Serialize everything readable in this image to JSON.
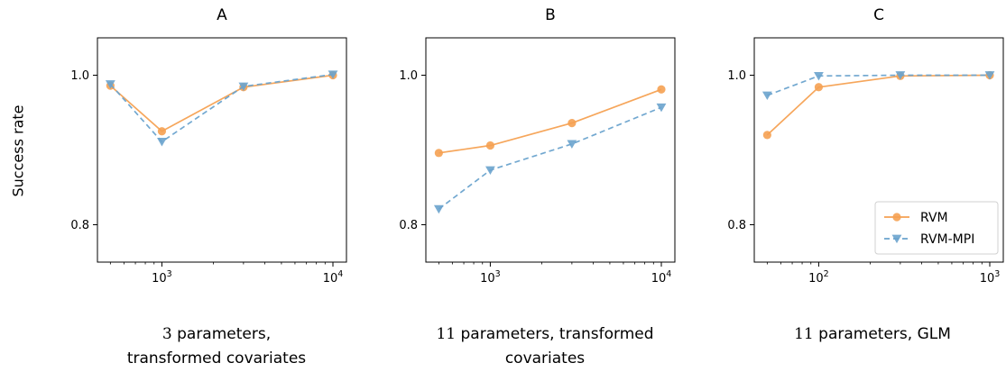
{
  "ylabel": "Success rate",
  "legend": {
    "position": "lower-right",
    "panel": 2,
    "entries": [
      "RVM",
      "RVM-MPI"
    ]
  },
  "colors": {
    "RVM": "#f5a152",
    "RVM-MPI": "#6aa3cd"
  },
  "captions": [
    {
      "num": "3",
      "line1": " parameters,",
      "line2": "transformed covariates"
    },
    {
      "num": "11",
      "line1": " parameters, transformed",
      "line2": "covariates"
    },
    {
      "num": "11",
      "line1": " parameters, GLM",
      "line2": ""
    }
  ],
  "chart_data": [
    {
      "type": "line",
      "title": "A",
      "x_scale": "log",
      "xlim": [
        420,
        12000
      ],
      "ylim": [
        0.75,
        1.05
      ],
      "xticks": [
        {
          "value": 1000,
          "label": "10^3"
        },
        {
          "value": 10000,
          "label": "10^4"
        }
      ],
      "yticks": [
        0.8,
        1.0
      ],
      "x": [
        500,
        1000,
        3000,
        10000
      ],
      "series": [
        {
          "name": "RVM",
          "marker": "circle",
          "linestyle": "solid",
          "values": [
            0.986,
            0.925,
            0.984,
            1.0
          ]
        },
        {
          "name": "RVM-MPI",
          "marker": "triangle-down",
          "linestyle": "dashed",
          "values": [
            0.988,
            0.911,
            0.985,
            1.001
          ]
        }
      ]
    },
    {
      "type": "line",
      "title": "B",
      "x_scale": "log",
      "xlim": [
        420,
        12000
      ],
      "ylim": [
        0.75,
        1.05
      ],
      "xticks": [
        {
          "value": 1000,
          "label": "10^3"
        },
        {
          "value": 10000,
          "label": "10^4"
        }
      ],
      "yticks": [
        0.8,
        1.0
      ],
      "x": [
        500,
        1000,
        3000,
        10000
      ],
      "series": [
        {
          "name": "RVM",
          "marker": "circle",
          "linestyle": "solid",
          "values": [
            0.896,
            0.906,
            0.936,
            0.981
          ]
        },
        {
          "name": "RVM-MPI",
          "marker": "triangle-down",
          "linestyle": "dashed",
          "values": [
            0.821,
            0.873,
            0.908,
            0.957
          ]
        }
      ]
    },
    {
      "type": "line",
      "title": "C",
      "x_scale": "log",
      "xlim": [
        42,
        1200
      ],
      "ylim": [
        0.75,
        1.05
      ],
      "xticks": [
        {
          "value": 100,
          "label": "10^2"
        },
        {
          "value": 1000,
          "label": "10^3"
        }
      ],
      "yticks": [
        0.8,
        1.0
      ],
      "x": [
        50,
        100,
        300,
        1000
      ],
      "series": [
        {
          "name": "RVM",
          "marker": "circle",
          "linestyle": "solid",
          "values": [
            0.92,
            0.984,
            0.999,
            1.0
          ]
        },
        {
          "name": "RVM-MPI",
          "marker": "triangle-down",
          "linestyle": "dashed",
          "values": [
            0.973,
            0.999,
            1.0,
            1.0
          ]
        }
      ]
    }
  ]
}
